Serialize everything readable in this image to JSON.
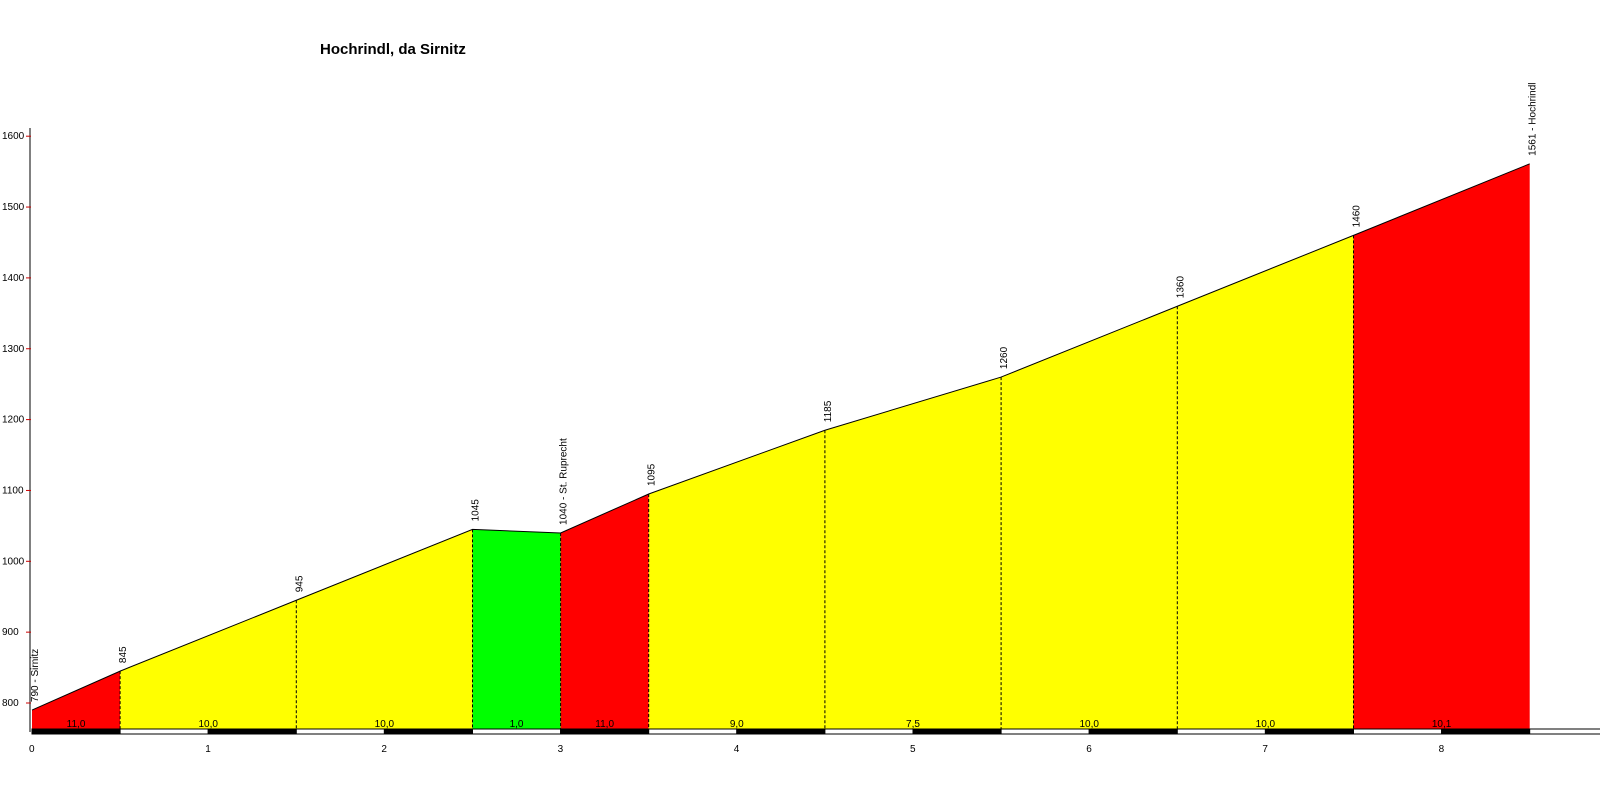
{
  "chart_data": {
    "type": "area",
    "title": "Hochrindl, da Sirnitz",
    "xlabel": "",
    "ylabel": "",
    "xlim": [
      0,
      9
    ],
    "ylim": [
      745,
      1600
    ],
    "x_ticks": [
      "0",
      "1",
      "2",
      "3",
      "4",
      "5",
      "6",
      "7",
      "8"
    ],
    "y_ticks": [
      "800",
      "900",
      "1000",
      "1100",
      "1200",
      "1300",
      "1400",
      "1500",
      "1600"
    ],
    "profile": [
      {
        "km": 0.0,
        "alt": 790
      },
      {
        "km": 0.5,
        "alt": 845
      },
      {
        "km": 1.5,
        "alt": 945
      },
      {
        "km": 2.5,
        "alt": 1045
      },
      {
        "km": 3.0,
        "alt": 1040
      },
      {
        "km": 3.5,
        "alt": 1095
      },
      {
        "km": 4.5,
        "alt": 1185
      },
      {
        "km": 5.5,
        "alt": 1260
      },
      {
        "km": 6.5,
        "alt": 1360
      },
      {
        "km": 7.5,
        "alt": 1460
      },
      {
        "km": 8.5,
        "alt": 1561
      }
    ],
    "point_labels": [
      "790 - Sirnitz",
      "845",
      "945",
      "1045",
      "1040 - St. Ruprecht",
      "1095",
      "1185",
      "1260",
      "1360",
      "1460",
      "1561 - Hochrindl"
    ],
    "segments": [
      {
        "gradient": "11,0",
        "color": "#ff0000"
      },
      {
        "gradient": "10,0",
        "color": "#ffff00"
      },
      {
        "gradient": "10,0",
        "color": "#ffff00"
      },
      {
        "gradient": "1,0",
        "color": "#00ff00"
      },
      {
        "gradient": "11,0",
        "color": "#ff0000"
      },
      {
        "gradient": "9,0",
        "color": "#ffff00"
      },
      {
        "gradient": "7,5",
        "color": "#ffff00"
      },
      {
        "gradient": "10,0",
        "color": "#ffff00"
      },
      {
        "gradient": "10,0",
        "color": "#ffff00"
      },
      {
        "gradient": "10,1",
        "color": "#ff0000"
      }
    ]
  }
}
